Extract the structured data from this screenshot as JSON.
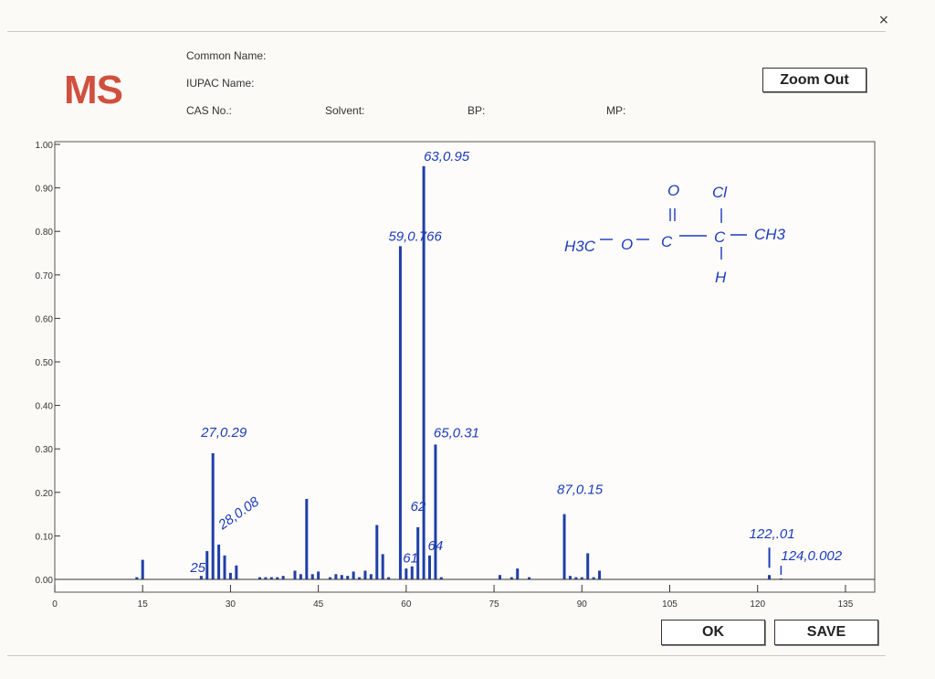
{
  "window": {
    "close_glyph": "×"
  },
  "header": {
    "logo": "MS",
    "common_name_label": "Common Name:",
    "iupac_name_label": "IUPAC Name:",
    "cas_label": "CAS No.:",
    "solvent_label": "Solvent:",
    "bp_label": "BP:",
    "mp_label": "MP:"
  },
  "buttons": {
    "zoom_out": "Zoom Out",
    "ok": "OK",
    "save": "SAVE"
  },
  "colors": {
    "bar": "#1f3fa8",
    "ink": "#1b3bbd",
    "logo": "#d0503f"
  },
  "chart_data": {
    "type": "bar",
    "xlim": [
      0,
      140
    ],
    "ylim": [
      0,
      1.0
    ],
    "x_ticks": [
      0,
      15,
      30,
      45,
      60,
      75,
      90,
      105,
      120,
      135
    ],
    "y_ticks": [
      "0.00",
      "0.10",
      "0.20",
      "0.30",
      "0.40",
      "0.50",
      "0.60",
      "0.70",
      "0.80",
      "0.90",
      "1.00"
    ],
    "grid": false,
    "series": [
      {
        "x": [
          14,
          15,
          25,
          26,
          27,
          28,
          29,
          30,
          31,
          35,
          36,
          37,
          38,
          39,
          41,
          42,
          43,
          44,
          45,
          47,
          48,
          49,
          50,
          51,
          52,
          53,
          54,
          55,
          56,
          57,
          59,
          60,
          61,
          62,
          63,
          64,
          65,
          66,
          76,
          78,
          79,
          81,
          87,
          88,
          89,
          90,
          91,
          92,
          93,
          122,
          124
        ],
        "values": [
          0.005,
          0.045,
          0.008,
          0.065,
          0.29,
          0.08,
          0.055,
          0.015,
          0.032,
          0.005,
          0.005,
          0.005,
          0.005,
          0.008,
          0.02,
          0.012,
          0.185,
          0.012,
          0.018,
          0.005,
          0.012,
          0.01,
          0.008,
          0.018,
          0.005,
          0.02,
          0.012,
          0.125,
          0.058,
          0.005,
          0.766,
          0.025,
          0.03,
          0.12,
          0.95,
          0.055,
          0.31,
          0.005,
          0.01,
          0.005,
          0.025,
          0.005,
          0.15,
          0.008,
          0.005,
          0.005,
          0.06,
          0.005,
          0.02,
          0.01,
          0.002
        ]
      }
    ],
    "annotations": [
      {
        "text": "63,0.95",
        "x": 63,
        "y": 0.95
      },
      {
        "text": "59,0.766",
        "x": 59,
        "y": 0.766
      },
      {
        "text": "27,0.29",
        "x": 27,
        "y": 0.29
      },
      {
        "text": "65,0.31",
        "x": 65,
        "y": 0.31
      },
      {
        "text": "28,0.08",
        "x": 28,
        "y": 0.08
      },
      {
        "text": "25",
        "x": 25,
        "y": 0.008
      },
      {
        "text": "62",
        "x": 62,
        "y": 0.12
      },
      {
        "text": "61",
        "x": 61,
        "y": 0.03
      },
      {
        "text": "64",
        "x": 64,
        "y": 0.055
      },
      {
        "text": "87,0.15",
        "x": 87,
        "y": 0.15
      },
      {
        "text": "122,.01",
        "x": 122,
        "y": 0.01
      },
      {
        "text": "124,0.002",
        "x": 124,
        "y": 0.002
      }
    ],
    "structure": {
      "left": "H3C",
      "o1": "O",
      "c1": "C",
      "carbonyl_o": "O",
      "c2": "C",
      "cl": "Cl",
      "h": "H",
      "right": "CH3"
    }
  }
}
